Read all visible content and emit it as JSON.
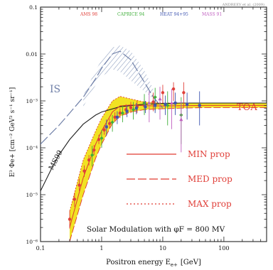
{
  "chart_data": {
    "type": "scatter",
    "title": "",
    "credit": "ANDREEV et al. (2009)",
    "xlabel": "Positron energy E",
    "xlabel_sub": "e+",
    "xlabel_unit": "[GeV]",
    "ylabel": "E³ Φe+ [cm⁻² GeV² s⁻¹ sr⁻¹]",
    "xscale": "log",
    "yscale": "log",
    "xlim": [
      0.1,
      500
    ],
    "ylim": [
      1e-06,
      0.1
    ],
    "x_ticks": [
      {
        "v": 0.1,
        "label": "0.1"
      },
      {
        "v": 1,
        "label": "1"
      },
      {
        "v": 10,
        "label": "10"
      },
      {
        "v": 100,
        "label": "100"
      }
    ],
    "y_ticks": [
      {
        "v": 0.1,
        "label": "0.1"
      },
      {
        "v": 0.01,
        "label": "0.01"
      },
      {
        "v": 0.001,
        "label": "10⁻³"
      },
      {
        "v": 0.0001,
        "label": "10⁻⁴"
      },
      {
        "v": 1e-05,
        "label": "10⁻⁵"
      },
      {
        "v": 1e-06,
        "label": "10⁻⁶"
      }
    ],
    "legend_experiments": [
      {
        "name": "AMS 98",
        "color": "#e0403a"
      },
      {
        "name": "CAPRICE 94",
        "color": "#3fae3a"
      },
      {
        "name": "HEAT 94+95",
        "color": "#3f55b0"
      },
      {
        "name": "MASS 91",
        "color": "#c060c0"
      }
    ],
    "legend_props": [
      {
        "name": "MIN prop",
        "style": "solid"
      },
      {
        "name": "MED prop",
        "style": "dashed"
      },
      {
        "name": "MAX prop",
        "style": "dotted"
      }
    ],
    "annotation": "Solar Modulation with φF = 800 MV",
    "curve_labels": {
      "is": "IS",
      "toa": "TOA",
      "background": "MS99"
    },
    "colors": {
      "band": "#f0e010",
      "band_edge": "#c8a000",
      "hatch": "#8fa0c0",
      "prop_lines": "#e03a30",
      "is_curve": "#7080a8",
      "ms99_curve": "#202020",
      "label_red": "#e0403a",
      "label_blue": "#7080a8"
    },
    "band_toa": {
      "x": [
        0.3,
        0.5,
        0.8,
        1.0,
        1.5,
        2.0,
        3,
        5,
        10,
        20,
        50,
        100,
        500
      ],
      "upper": [
        4.5e-06,
        5.5e-05,
        0.00023,
        0.00043,
        0.001,
        0.00125,
        0.0011,
        0.00095,
        0.0009,
        0.0009,
        0.0009,
        0.0009,
        0.0009
      ],
      "lower": [
        1e-06,
        1e-05,
        6e-05,
        0.00012,
        0.00033,
        0.00047,
        0.00058,
        0.00065,
        0.00068,
        0.0007,
        0.00072,
        0.00072,
        0.00072
      ],
      "mid": [
        2e-06,
        2.3e-05,
        0.00012,
        0.00023,
        0.00058,
        0.00078,
        0.00082,
        0.00079,
        0.00078,
        0.00079,
        0.0008,
        0.0008,
        0.0008
      ]
    },
    "band_is": {
      "x": [
        0.5,
        0.8,
        1.0,
        1.5,
        2.0,
        3,
        5,
        7
      ],
      "upper": [
        0.0013,
        0.0045,
        0.0075,
        0.0138,
        0.0152,
        0.0115,
        0.0045,
        0.0018
      ],
      "lower": [
        0.00075,
        0.0022,
        0.0033,
        0.0047,
        0.0042,
        0.0027,
        0.0016,
        0.0011
      ]
    },
    "is_curve": {
      "x": [
        0.1,
        0.2,
        0.3,
        0.5,
        0.8,
        1.0,
        1.5,
        2.0,
        3,
        5,
        7,
        10
      ],
      "y": [
        0.00012,
        0.0003,
        0.00055,
        0.0012,
        0.003,
        0.005,
        0.01,
        0.0115,
        0.0075,
        0.0025,
        0.0012,
        0.0007
      ]
    },
    "ms99_curve": {
      "x": [
        0.1,
        0.15,
        0.2,
        0.3,
        0.5,
        0.8,
        1,
        2,
        5,
        10,
        20,
        50,
        100,
        500
      ],
      "y": [
        1.2e-05,
        3.5e-05,
        7e-05,
        0.00015,
        0.00032,
        0.0005,
        0.00058,
        0.00075,
        0.00085,
        0.00088,
        0.0009,
        0.0009,
        0.0009,
        0.0009
      ]
    },
    "series": [
      {
        "name": "AMS 98",
        "color": "#e0403a",
        "marker": "circle",
        "points": [
          {
            "x": 0.3,
            "y": 3e-06,
            "lo": 1.9e-06,
            "hi": 4.5e-06
          },
          {
            "x": 0.36,
            "y": 8e-06,
            "lo": 5.5e-06,
            "hi": 1.1e-05
          },
          {
            "x": 0.43,
            "y": 1.6e-05,
            "lo": 1.2e-05,
            "hi": 2.2e-05
          },
          {
            "x": 0.52,
            "y": 3.2e-05,
            "lo": 2.4e-05,
            "hi": 4.2e-05
          },
          {
            "x": 0.62,
            "y": 5.5e-05,
            "lo": 4.2e-05,
            "hi": 7e-05
          },
          {
            "x": 0.75,
            "y": 9e-05,
            "lo": 7e-05,
            "hi": 0.000115
          },
          {
            "x": 0.9,
            "y": 0.00015,
            "lo": 0.00012,
            "hi": 0.00019
          },
          {
            "x": 1.1,
            "y": 0.00024,
            "lo": 0.00019,
            "hi": 0.0003
          },
          {
            "x": 1.35,
            "y": 0.00033,
            "lo": 0.00026,
            "hi": 0.00042
          },
          {
            "x": 1.65,
            "y": 0.00045,
            "lo": 0.00035,
            "hi": 0.00057
          },
          {
            "x": 2.0,
            "y": 0.00055,
            "lo": 0.00043,
            "hi": 0.0007
          },
          {
            "x": 2.5,
            "y": 0.00065,
            "lo": 0.0005,
            "hi": 0.00085
          },
          {
            "x": 3.0,
            "y": 0.00072,
            "lo": 0.00055,
            "hi": 0.00095
          },
          {
            "x": 3.8,
            "y": 0.00075,
            "lo": 0.00055,
            "hi": 0.001
          },
          {
            "x": 5.0,
            "y": 0.0008,
            "lo": 0.00058,
            "hi": 0.0011
          },
          {
            "x": 7.0,
            "y": 0.00095,
            "lo": 0.0006,
            "hi": 0.0015
          },
          {
            "x": 10.0,
            "y": 0.0015,
            "lo": 0.0009,
            "hi": 0.0022
          },
          {
            "x": 15.0,
            "y": 0.0018,
            "lo": 0.001,
            "hi": 0.0025
          },
          {
            "x": 22.0,
            "y": 0.0015,
            "lo": 0.0007,
            "hi": 0.0025
          }
        ]
      },
      {
        "name": "CAPRICE 94",
        "color": "#3fae3a",
        "marker": "diamond",
        "points": [
          {
            "x": 0.7,
            "y": 7e-05,
            "lo": 4e-05,
            "hi": 0.00011
          },
          {
            "x": 1.0,
            "y": 0.00016,
            "lo": 0.0001,
            "hi": 0.00024
          },
          {
            "x": 1.5,
            "y": 0.00035,
            "lo": 0.00022,
            "hi": 0.0005
          },
          {
            "x": 2.2,
            "y": 0.00055,
            "lo": 0.00035,
            "hi": 0.0008
          },
          {
            "x": 3.3,
            "y": 0.00065,
            "lo": 0.0004,
            "hi": 0.00095
          },
          {
            "x": 5.0,
            "y": 0.0009,
            "lo": 0.0005,
            "hi": 0.0014
          },
          {
            "x": 7.5,
            "y": 0.0012,
            "lo": 0.0006,
            "hi": 0.0019
          },
          {
            "x": 12.0,
            "y": 0.0008,
            "lo": 0.0003,
            "hi": 0.0016
          },
          {
            "x": 20.0,
            "y": 0.0005,
            "lo": 0.00012,
            "hi": 0.0012
          }
        ]
      },
      {
        "name": "HEAT 94+95",
        "color": "#3f55b0",
        "marker": "square",
        "points": [
          {
            "x": 1.2,
            "y": 0.00028,
            "lo": 0.00018,
            "hi": 0.0004
          },
          {
            "x": 1.8,
            "y": 0.00045,
            "lo": 0.00032,
            "hi": 0.0006
          },
          {
            "x": 2.6,
            "y": 0.0006,
            "lo": 0.00045,
            "hi": 0.0008
          },
          {
            "x": 3.7,
            "y": 0.0007,
            "lo": 0.00052,
            "hi": 0.0009
          },
          {
            "x": 5.2,
            "y": 0.00075,
            "lo": 0.00055,
            "hi": 0.001
          },
          {
            "x": 7.5,
            "y": 0.0008,
            "lo": 0.00055,
            "hi": 0.0011
          },
          {
            "x": 11.0,
            "y": 0.00085,
            "lo": 0.0005,
            "hi": 0.0013
          },
          {
            "x": 16.0,
            "y": 0.0009,
            "lo": 0.0005,
            "hi": 0.0015
          },
          {
            "x": 25.0,
            "y": 0.00085,
            "lo": 0.0004,
            "hi": 0.0015
          },
          {
            "x": 40.0,
            "y": 0.0008,
            "lo": 0.0003,
            "hi": 0.0016
          }
        ]
      },
      {
        "name": "MASS 91",
        "color": "#c060c0",
        "marker": "triangle",
        "points": [
          {
            "x": 6.0,
            "y": 0.0009,
            "lo": 0.00035,
            "hi": 0.0016
          },
          {
            "x": 9.0,
            "y": 0.0011,
            "lo": 0.0004,
            "hi": 0.002
          },
          {
            "x": 14.0,
            "y": 0.0009,
            "lo": 0.00025,
            "hi": 0.0018
          },
          {
            "x": 20.0,
            "y": 0.0004,
            "lo": 8e-05,
            "hi": 0.001
          }
        ]
      }
    ]
  }
}
